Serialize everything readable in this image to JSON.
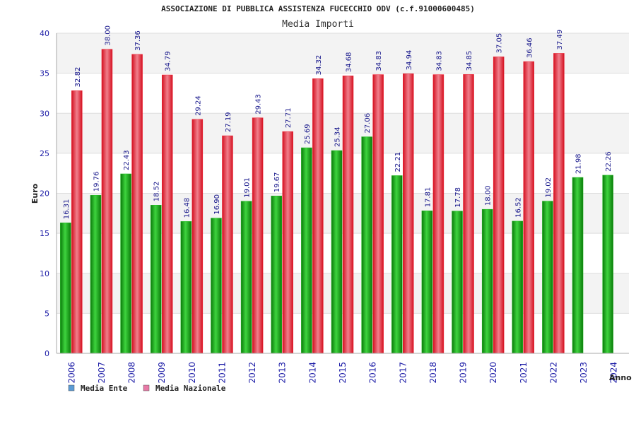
{
  "chart_data": {
    "type": "bar",
    "title": "ASSOCIAZIONE DI PUBBLICA ASSISTENZA FUCECCHIO ODV (c.f.91000600485)",
    "subtitle": "Media Importi",
    "xlabel": "Anno",
    "ylabel": "Euro",
    "ylim": [
      0,
      40
    ],
    "yticks": [
      0,
      5,
      10,
      15,
      20,
      25,
      30,
      35,
      40
    ],
    "grid": true,
    "legend_position": "bottom-left",
    "categories": [
      "2006",
      "2007",
      "2008",
      "2009",
      "2010",
      "2011",
      "2012",
      "2013",
      "2014",
      "2015",
      "2016",
      "2017",
      "2018",
      "2019",
      "2020",
      "2021",
      "2022",
      "2023",
      "2024"
    ],
    "series": [
      {
        "name": "Media Ente",
        "bar_color": "#22bb22",
        "legend_color": "#5b9bd5",
        "values": [
          16.31,
          19.76,
          22.43,
          18.52,
          16.48,
          16.9,
          19.01,
          19.67,
          25.69,
          25.34,
          27.06,
          22.21,
          17.81,
          17.78,
          18.0,
          16.52,
          19.02,
          21.98,
          22.26
        ],
        "labels": [
          "16.31",
          "19.76",
          "22.43",
          "18.52",
          "16.48",
          "16.90",
          "19.01",
          "19.67",
          "25.69",
          "25.34",
          "27.06",
          "22.21",
          "17.81",
          "17.78",
          "18.00",
          "16.52",
          "19.02",
          "21.98",
          "22.26"
        ]
      },
      {
        "name": "Media Nazionale",
        "bar_color": "#ee2233",
        "legend_color": "#e879a6",
        "values": [
          32.82,
          38.0,
          37.36,
          34.79,
          29.24,
          27.19,
          29.43,
          27.71,
          34.32,
          34.68,
          34.83,
          34.94,
          34.83,
          34.85,
          37.05,
          36.46,
          37.49,
          null,
          null
        ],
        "labels": [
          "32.82",
          "38.00",
          "37.36",
          "34.79",
          "29.24",
          "27.19",
          "29.43",
          "27.71",
          "34.32",
          "34.68",
          "34.83",
          "34.94",
          "34.83",
          "34.85",
          "37.05",
          "36.46",
          "37.49",
          "",
          ""
        ]
      }
    ]
  }
}
